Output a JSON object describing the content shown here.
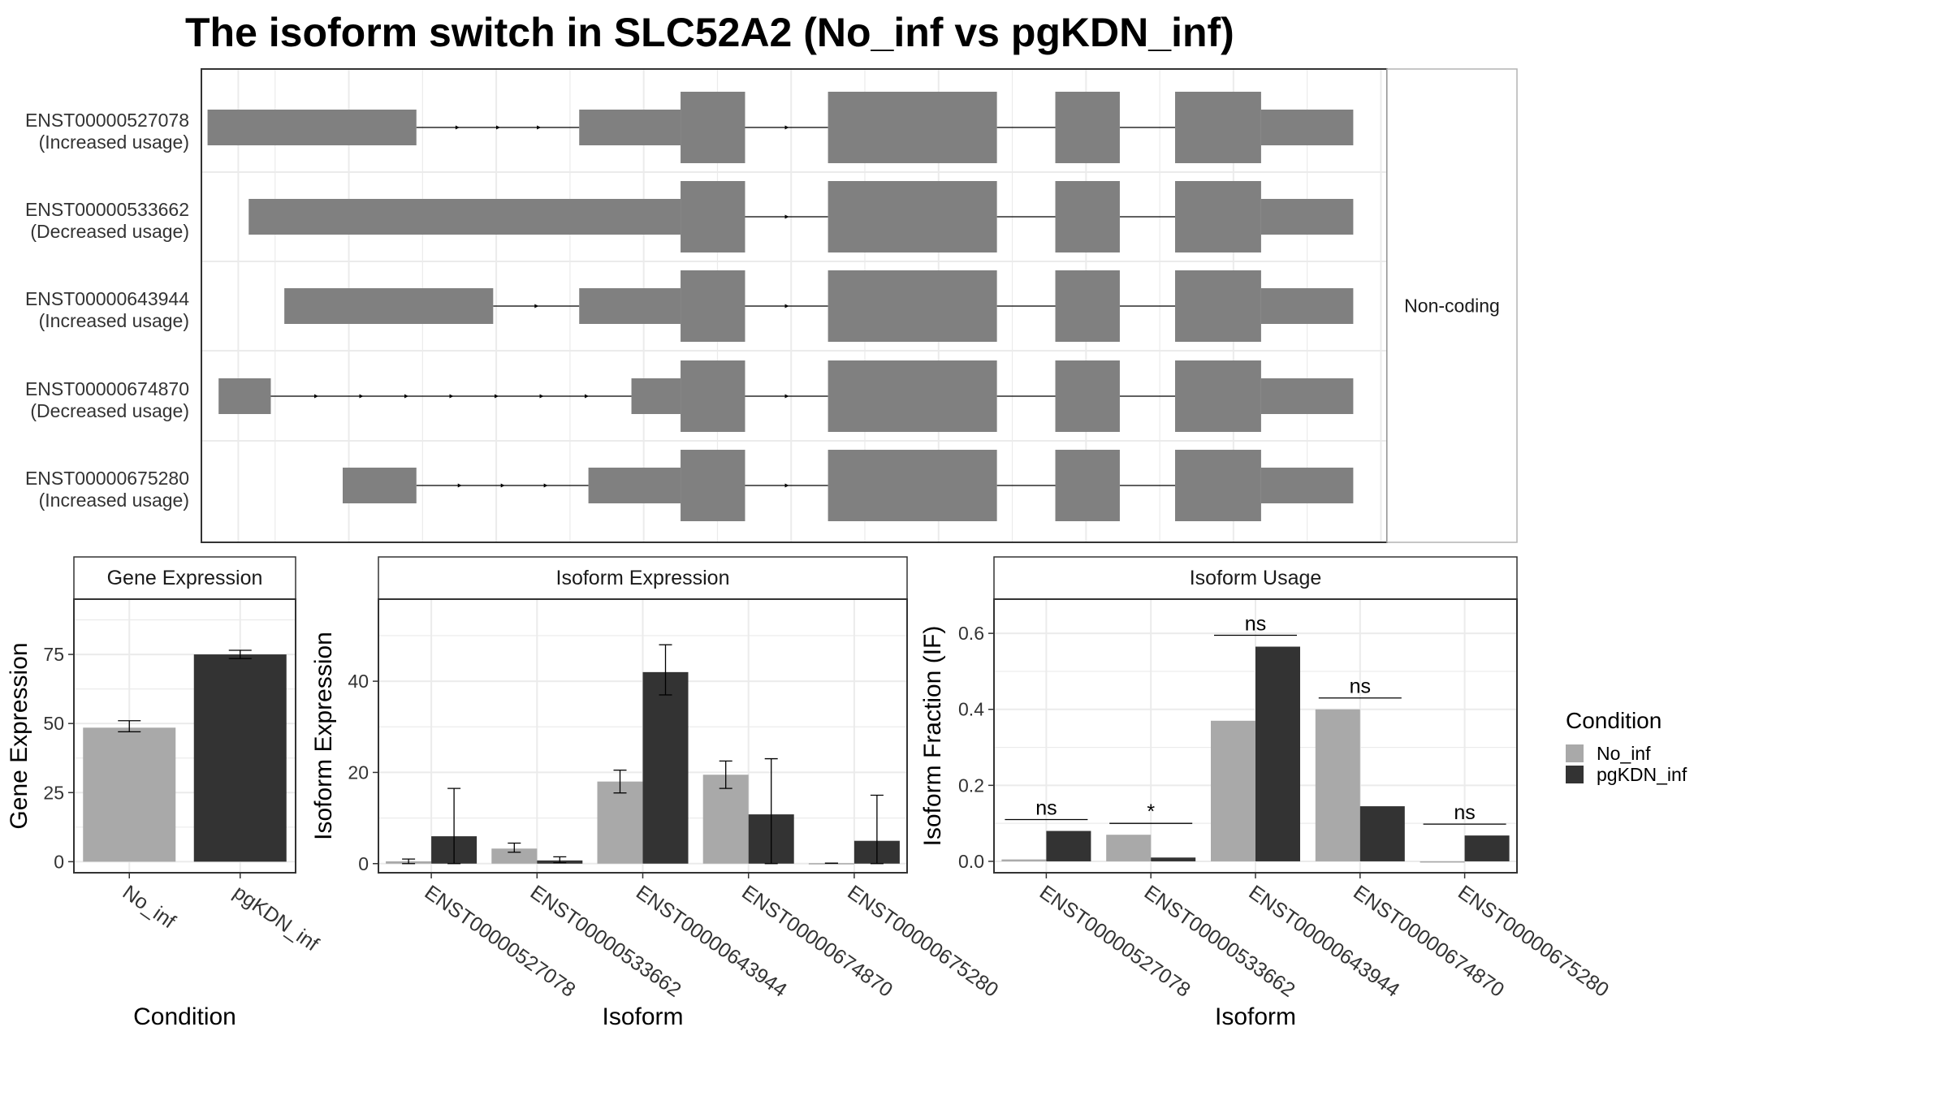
{
  "title": "The isoform switch in SLC52A2 (No_inf vs pgKDN_inf)",
  "colors": {
    "no_inf": "#a9a9a9",
    "pgkdn_inf": "#333333",
    "exon": "#808080",
    "intron": "#000000",
    "grid": "#ebebeb",
    "panel_border": "#333333",
    "strip_bg": "#ffffff"
  },
  "chart_data": [
    {
      "type": "gene-structure",
      "facet_label": "Non-coding",
      "isoforms": [
        {
          "id": "ENST00000527078",
          "usage_label": "(Increased usage)",
          "exons": [
            {
              "start": 10,
              "end": 350,
              "size": "thin"
            },
            {
              "start": 615,
              "end": 780,
              "size": "thin"
            },
            {
              "start": 780,
              "end": 885,
              "size": "thick"
            },
            {
              "start": 1020,
              "end": 1295,
              "size": "thick"
            },
            {
              "start": 1390,
              "end": 1495,
              "size": "thick"
            },
            {
              "start": 1585,
              "end": 1725,
              "size": "thick"
            },
            {
              "start": 1725,
              "end": 1875,
              "size": "thin"
            }
          ]
        },
        {
          "id": "ENST00000533662",
          "usage_label": "(Decreased usage)",
          "exons": [
            {
              "start": 77,
              "end": 780,
              "size": "thin"
            },
            {
              "start": 780,
              "end": 885,
              "size": "thick"
            },
            {
              "start": 1020,
              "end": 1295,
              "size": "thick"
            },
            {
              "start": 1390,
              "end": 1495,
              "size": "thick"
            },
            {
              "start": 1585,
              "end": 1725,
              "size": "thick"
            },
            {
              "start": 1725,
              "end": 1875,
              "size": "thin"
            }
          ]
        },
        {
          "id": "ENST00000643944",
          "usage_label": "(Increased usage)",
          "exons": [
            {
              "start": 135,
              "end": 475,
              "size": "thin"
            },
            {
              "start": 615,
              "end": 780,
              "size": "thin"
            },
            {
              "start": 780,
              "end": 885,
              "size": "thick"
            },
            {
              "start": 1020,
              "end": 1295,
              "size": "thick"
            },
            {
              "start": 1390,
              "end": 1495,
              "size": "thick"
            },
            {
              "start": 1585,
              "end": 1725,
              "size": "thick"
            },
            {
              "start": 1725,
              "end": 1875,
              "size": "thin"
            }
          ]
        },
        {
          "id": "ENST00000674870",
          "usage_label": "(Decreased usage)",
          "exons": [
            {
              "start": 28,
              "end": 113,
              "size": "thin"
            },
            {
              "start": 700,
              "end": 780,
              "size": "thin"
            },
            {
              "start": 780,
              "end": 885,
              "size": "thick"
            },
            {
              "start": 1020,
              "end": 1295,
              "size": "thick"
            },
            {
              "start": 1390,
              "end": 1495,
              "size": "thick"
            },
            {
              "start": 1585,
              "end": 1725,
              "size": "thick"
            },
            {
              "start": 1725,
              "end": 1875,
              "size": "thin"
            }
          ]
        },
        {
          "id": "ENST00000675280",
          "usage_label": "(Increased usage)",
          "exons": [
            {
              "start": 230,
              "end": 350,
              "size": "thin"
            },
            {
              "start": 630,
              "end": 780,
              "size": "thin"
            },
            {
              "start": 780,
              "end": 885,
              "size": "thick"
            },
            {
              "start": 1020,
              "end": 1295,
              "size": "thick"
            },
            {
              "start": 1390,
              "end": 1495,
              "size": "thick"
            },
            {
              "start": 1585,
              "end": 1725,
              "size": "thick"
            },
            {
              "start": 1725,
              "end": 1875,
              "size": "thin"
            }
          ]
        }
      ]
    },
    {
      "type": "bar",
      "strip_title": "Gene Expression",
      "xlabel": "Condition",
      "ylabel": "Gene Expression",
      "categories": [
        "No_inf",
        "pgKDN_inf"
      ],
      "values": [
        48.5,
        75.0
      ],
      "err_low": [
        47.0,
        73.5
      ],
      "err_high": [
        51.0,
        76.5
      ],
      "ylim": [
        -4,
        95
      ],
      "yticks": [
        0,
        25,
        50,
        75
      ]
    },
    {
      "type": "bar",
      "strip_title": "Isoform Expression",
      "xlabel": "Isoform",
      "ylabel": "Isoform Expression",
      "categories": [
        "ENST00000527078",
        "ENST00000533662",
        "ENST00000643944",
        "ENST00000674870",
        "ENST00000675280"
      ],
      "series": [
        {
          "name": "No_inf",
          "values": [
            0.5,
            3.3,
            18.0,
            19.5,
            0.1
          ],
          "err_low": [
            0.0,
            2.5,
            15.5,
            16.5,
            0.1
          ],
          "err_high": [
            1.0,
            4.5,
            20.5,
            22.5,
            0.1
          ]
        },
        {
          "name": "pgKDN_inf",
          "values": [
            6.0,
            0.7,
            42.0,
            10.8,
            5.0
          ],
          "err_low": [
            0.0,
            0.2,
            37.0,
            0.0,
            0.0
          ],
          "err_high": [
            16.5,
            1.5,
            48.0,
            23.0,
            15.0
          ]
        }
      ],
      "ylim": [
        -2,
        58
      ],
      "yticks": [
        0,
        20,
        40
      ]
    },
    {
      "type": "bar",
      "strip_title": "Isoform Usage",
      "xlabel": "Isoform",
      "ylabel": "Isoform Fraction (IF)",
      "categories": [
        "ENST00000527078",
        "ENST00000533662",
        "ENST00000643944",
        "ENST00000674870",
        "ENST00000675280"
      ],
      "series": [
        {
          "name": "No_inf",
          "values": [
            0.005,
            0.07,
            0.37,
            0.4,
            0.0
          ]
        },
        {
          "name": "pgKDN_inf",
          "values": [
            0.08,
            0.01,
            0.565,
            0.145,
            0.068
          ]
        }
      ],
      "annotations": [
        "ns",
        "*",
        "ns",
        "ns",
        "ns"
      ],
      "ylim": [
        -0.03,
        0.69
      ],
      "yticks": [
        0.0,
        0.2,
        0.4,
        0.6
      ],
      "ytick_labels": [
        "0.0",
        "0.2",
        "0.4",
        "0.6"
      ]
    }
  ],
  "legend": {
    "title": "Condition",
    "entries": [
      "No_inf",
      "pgKDN_inf"
    ]
  }
}
